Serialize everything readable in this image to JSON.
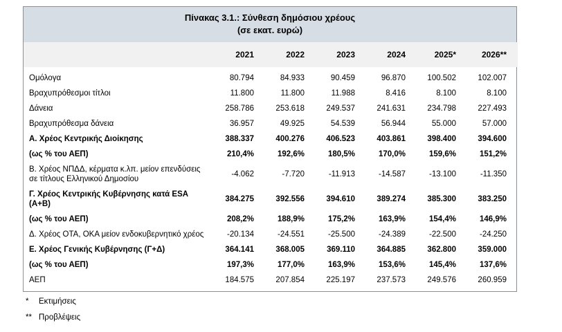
{
  "table": {
    "title_line1": "Πίνακας 3.1.: Σύνθεση δημόσιου χρέους",
    "title_line2": "(σε εκατ. ευρώ)",
    "columns": [
      "2021",
      "2022",
      "2023",
      "2024",
      "2025*",
      "2026**"
    ],
    "rows": [
      {
        "label": "Ομόλογα",
        "bold": false,
        "values": [
          "80.794",
          "84.933",
          "90.459",
          "96.870",
          "100.502",
          "102.007"
        ]
      },
      {
        "label": "Βραχυπρόθεσμοι τίτλοι",
        "bold": false,
        "values": [
          "11.800",
          "11.800",
          "11.988",
          "8.416",
          "8.100",
          "8.100"
        ]
      },
      {
        "label": "Δάνεια",
        "bold": false,
        "values": [
          "258.786",
          "253.618",
          "249.537",
          "241.631",
          "234.798",
          "227.493"
        ]
      },
      {
        "label": "Βραχυπρόθεσμα δάνεια",
        "bold": false,
        "values": [
          "36.957",
          "49.925",
          "54.539",
          "56.944",
          "55.000",
          "57.000"
        ]
      },
      {
        "label": "Α. Χρέος Κεντρικής Διοίκησης",
        "bold": true,
        "values": [
          "388.337",
          "400.276",
          "406.523",
          "403.861",
          "398.400",
          "394.600"
        ]
      },
      {
        "label": "(ως % του ΑΕΠ)",
        "bold": true,
        "values": [
          "210,4%",
          "192,6%",
          "180,5%",
          "170,0%",
          "159,6%",
          "151,2%"
        ]
      },
      {
        "label": "Β. Χρέος ΝΠΔΔ, κέρματα κ.λπ. μείον επενδύσεις σε τίτλους Ελληνικού Δημοσίου",
        "bold": false,
        "values": [
          "-4.062",
          "-7.720",
          "-11.913",
          "-14.587",
          "-13.100",
          "-11.350"
        ]
      },
      {
        "label": "Γ. Χρέος Κεντρικής Κυβέρνησης κατά ESA (Α+Β)",
        "bold": true,
        "values": [
          "384.275",
          "392.556",
          "394.610",
          "389.274",
          "385.300",
          "383.250"
        ]
      },
      {
        "label": "(ως % του ΑΕΠ)",
        "bold": true,
        "values": [
          "208,2%",
          "188,9%",
          "175,2%",
          "163,9%",
          "154,4%",
          "146,9%"
        ]
      },
      {
        "label": "Δ. Χρέος ΟΤΑ, ΟΚΑ μείον ενδοκυβερνητικό χρέος",
        "bold": false,
        "values": [
          "-20.134",
          "-24.551",
          "-25.500",
          "-24.389",
          "-22.500",
          "-24.250"
        ]
      },
      {
        "label": "Ε. Χρέος Γενικής Κυβέρνησης (Γ+Δ)",
        "bold": true,
        "values": [
          "364.141",
          "368.005",
          "369.110",
          "364.885",
          "362.800",
          "359.000"
        ]
      },
      {
        "label": "(ως % του ΑΕΠ)",
        "bold": true,
        "values": [
          "197,3%",
          "177,0%",
          "163,9%",
          "153,6%",
          "145,4%",
          "137,6%"
        ]
      },
      {
        "label": "ΑΕΠ",
        "bold": false,
        "values": [
          "184.575",
          "207.854",
          "225.197",
          "237.573",
          "249.576",
          "260.959"
        ]
      }
    ]
  },
  "footnotes": [
    {
      "marker": "*",
      "text": "Εκτιμήσεις"
    },
    {
      "marker": "**",
      "text": "Προβλέψεις"
    }
  ],
  "colors": {
    "title_band": "#d6dde4",
    "header_band": "#f1f1f2",
    "border": "#8a8f95"
  }
}
